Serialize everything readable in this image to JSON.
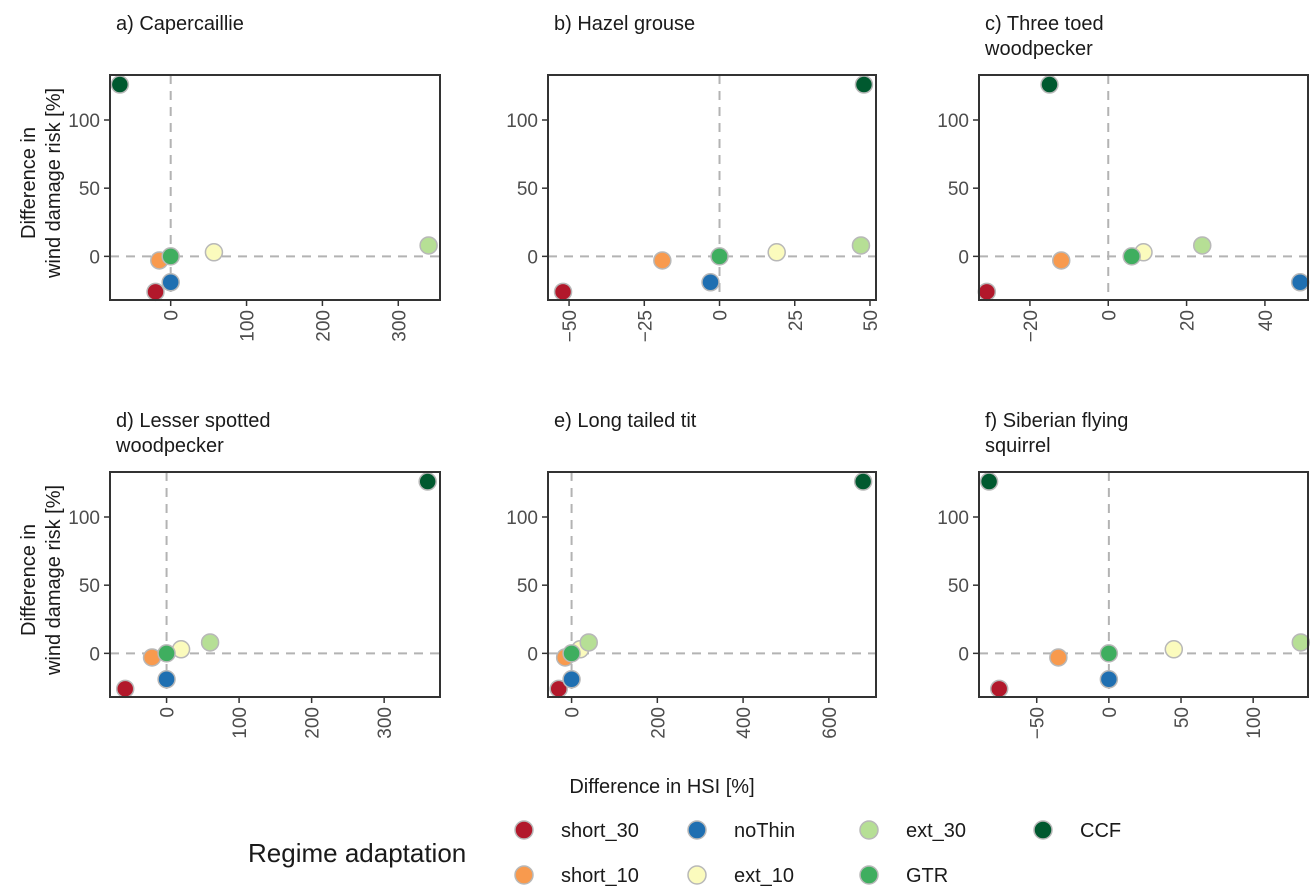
{
  "x_axis_title": "Difference in HSI [%]",
  "y_axis_title_line1": "Difference in",
  "y_axis_title_line2": "wind damage risk [%]",
  "legend": {
    "title": "Regime adaptation",
    "items": [
      {
        "name": "short_30",
        "color": "#b2182b"
      },
      {
        "name": "short_10",
        "color": "#f89a4e"
      },
      {
        "name": "noThin",
        "color": "#1f6fb1"
      },
      {
        "name": "ext_10",
        "color": "#fbfbbd"
      },
      {
        "name": "ext_30",
        "color": "#b6df95"
      },
      {
        "name": "GTR",
        "color": "#3fae5f"
      },
      {
        "name": "CCF",
        "color": "#00592f"
      }
    ]
  },
  "chart_data": [
    {
      "type": "scatter",
      "title_lines": [
        "a) Capercaillie"
      ],
      "xlim": [
        -80,
        355
      ],
      "ylim": [
        -32,
        133
      ],
      "xticks": [
        0,
        100,
        200,
        300
      ],
      "yticks": [
        0,
        50,
        100
      ],
      "ref_lines": {
        "x": 0,
        "y": 0
      },
      "points": [
        {
          "series": "short_30",
          "x": -20,
          "y": -26
        },
        {
          "series": "short_10",
          "x": -15,
          "y": -3
        },
        {
          "series": "noThin",
          "x": 0,
          "y": -19
        },
        {
          "series": "ext_10",
          "x": 57,
          "y": 3
        },
        {
          "series": "ext_30",
          "x": 340,
          "y": 8
        },
        {
          "series": "GTR",
          "x": 0,
          "y": 0
        },
        {
          "series": "CCF",
          "x": -67,
          "y": 126
        }
      ]
    },
    {
      "type": "scatter",
      "title_lines": [
        "b) Hazel grouse"
      ],
      "xlim": [
        -57,
        52
      ],
      "ylim": [
        -32,
        133
      ],
      "xticks": [
        -50,
        -25,
        0,
        25,
        50
      ],
      "yticks": [
        0,
        50,
        100
      ],
      "ref_lines": {
        "x": 0,
        "y": 0
      },
      "points": [
        {
          "series": "short_30",
          "x": -52,
          "y": -26
        },
        {
          "series": "short_10",
          "x": -19,
          "y": -3
        },
        {
          "series": "noThin",
          "x": -3,
          "y": -19
        },
        {
          "series": "ext_10",
          "x": 19,
          "y": 3
        },
        {
          "series": "ext_30",
          "x": 47,
          "y": 8
        },
        {
          "series": "GTR",
          "x": 0,
          "y": 0
        },
        {
          "series": "CCF",
          "x": 48,
          "y": 126
        }
      ]
    },
    {
      "type": "scatter",
      "title_lines": [
        "c) Three toed",
        "woodpecker"
      ],
      "xlim": [
        -33,
        51
      ],
      "ylim": [
        -32,
        133
      ],
      "xticks": [
        -20,
        0,
        20,
        40
      ],
      "yticks": [
        0,
        50,
        100
      ],
      "ref_lines": {
        "x": 0,
        "y": 0
      },
      "points": [
        {
          "series": "short_30",
          "x": -31,
          "y": -26
        },
        {
          "series": "short_10",
          "x": -12,
          "y": -3
        },
        {
          "series": "noThin",
          "x": 49,
          "y": -19
        },
        {
          "series": "ext_10",
          "x": 9,
          "y": 3
        },
        {
          "series": "ext_30",
          "x": 24,
          "y": 8
        },
        {
          "series": "GTR",
          "x": 6,
          "y": 0
        },
        {
          "series": "CCF",
          "x": -15,
          "y": 126
        }
      ]
    },
    {
      "type": "scatter",
      "title_lines": [
        "d) Lesser spotted",
        "woodpecker"
      ],
      "xlim": [
        -78,
        377
      ],
      "ylim": [
        -32,
        133
      ],
      "xticks": [
        0,
        100,
        200,
        300
      ],
      "yticks": [
        0,
        50,
        100
      ],
      "ref_lines": {
        "x": 0,
        "y": 0
      },
      "points": [
        {
          "series": "short_30",
          "x": -57,
          "y": -26
        },
        {
          "series": "short_10",
          "x": -20,
          "y": -3
        },
        {
          "series": "noThin",
          "x": 0,
          "y": -19
        },
        {
          "series": "ext_10",
          "x": 20,
          "y": 3
        },
        {
          "series": "ext_30",
          "x": 60,
          "y": 8
        },
        {
          "series": "GTR",
          "x": 0,
          "y": 0
        },
        {
          "series": "CCF",
          "x": 360,
          "y": 126
        }
      ]
    },
    {
      "type": "scatter",
      "title_lines": [
        "e) Long tailed tit"
      ],
      "xlim": [
        -55,
        710
      ],
      "ylim": [
        -32,
        133
      ],
      "xticks": [
        0,
        200,
        400,
        600
      ],
      "yticks": [
        0,
        50,
        100
      ],
      "ref_lines": {
        "x": 0,
        "y": 0
      },
      "points": [
        {
          "series": "short_30",
          "x": -30,
          "y": -26
        },
        {
          "series": "short_10",
          "x": -15,
          "y": -3
        },
        {
          "series": "noThin",
          "x": 0,
          "y": -19
        },
        {
          "series": "ext_10",
          "x": 20,
          "y": 3
        },
        {
          "series": "ext_30",
          "x": 40,
          "y": 8
        },
        {
          "series": "GTR",
          "x": 0,
          "y": 0
        },
        {
          "series": "CCF",
          "x": 680,
          "y": 126
        }
      ]
    },
    {
      "type": "scatter",
      "title_lines": [
        "f) Siberian flying",
        "squirrel"
      ],
      "xlim": [
        -90,
        138
      ],
      "ylim": [
        -32,
        133
      ],
      "xticks": [
        -50,
        0,
        50,
        100
      ],
      "yticks": [
        0,
        50,
        100
      ],
      "ref_lines": {
        "x": 0,
        "y": 0
      },
      "points": [
        {
          "series": "short_30",
          "x": -76,
          "y": -26
        },
        {
          "series": "short_10",
          "x": -35,
          "y": -3
        },
        {
          "series": "noThin",
          "x": 0,
          "y": -19
        },
        {
          "series": "ext_10",
          "x": 45,
          "y": 3
        },
        {
          "series": "ext_30",
          "x": 133,
          "y": 8
        },
        {
          "series": "GTR",
          "x": 0,
          "y": 0
        },
        {
          "series": "CCF",
          "x": -83,
          "y": 126
        }
      ]
    }
  ]
}
